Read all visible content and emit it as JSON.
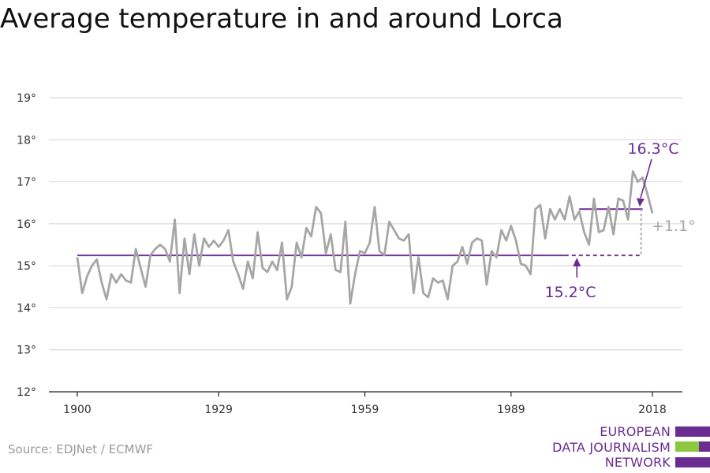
{
  "title": "Average temperature in and around Lorca",
  "source": "Source: EDJNet / ECMWF",
  "brand": {
    "lines": [
      "EUROPEAN",
      "DATA JOURNALISM",
      "NETWORK"
    ],
    "colors": {
      "purple": "#6a2c91",
      "green": "#8dc63f"
    }
  },
  "colors": {
    "series": "#a6a6a6",
    "reference": "#6a2c91",
    "delta": "#a6a6a6",
    "grid": "#dcdcdc",
    "axis": "#222222"
  },
  "chart_data": {
    "type": "line",
    "title": "Average temperature in and around Lorca",
    "xlabel": "",
    "ylabel": "",
    "xlim": [
      1900,
      2018
    ],
    "ylim": [
      12,
      19
    ],
    "yticks": [
      {
        "value": 12,
        "label": "12°"
      },
      {
        "value": 13,
        "label": "13°"
      },
      {
        "value": 14,
        "label": "14°"
      },
      {
        "value": 15,
        "label": "15°"
      },
      {
        "value": 16,
        "label": "16°"
      },
      {
        "value": 17,
        "label": "17°"
      },
      {
        "value": 18,
        "label": "18°"
      },
      {
        "value": 19,
        "label": "19°"
      }
    ],
    "xticks": [
      {
        "value": 1900,
        "label": "1900"
      },
      {
        "value": 1929,
        "label": "1929"
      },
      {
        "value": 1959,
        "label": "1959"
      },
      {
        "value": 1989,
        "label": "1989"
      },
      {
        "value": 2018,
        "label": "2018"
      }
    ],
    "grid": true,
    "series": [
      {
        "x": [
          1900,
          1901,
          1902,
          1903,
          1904,
          1905,
          1906,
          1907,
          1908,
          1909,
          1910,
          1911,
          1912,
          1913,
          1914,
          1915,
          1916,
          1917,
          1918,
          1919,
          1920,
          1921,
          1922,
          1923,
          1924,
          1925,
          1926,
          1927,
          1928,
          1929,
          1930,
          1931,
          1932,
          1933,
          1934,
          1935,
          1936,
          1937,
          1938,
          1939,
          1940,
          1941,
          1942,
          1943,
          1944,
          1945,
          1946,
          1947,
          1948,
          1949,
          1950,
          1951,
          1952,
          1953,
          1954,
          1955,
          1956,
          1957,
          1958,
          1959,
          1960,
          1961,
          1962,
          1963,
          1964,
          1965,
          1966,
          1967,
          1968,
          1969,
          1970,
          1971,
          1972,
          1973,
          1974,
          1975,
          1976,
          1977,
          1978,
          1979,
          1980,
          1981,
          1982,
          1983,
          1984,
          1985,
          1986,
          1987,
          1988,
          1989,
          1990,
          1991,
          1992,
          1993,
          1994,
          1995,
          1996,
          1997,
          1998,
          1999,
          2000,
          2001,
          2002,
          2003,
          2004,
          2005,
          2006,
          2007,
          2008,
          2009,
          2010,
          2011,
          2012,
          2013,
          2014,
          2015,
          2016,
          2017,
          2018
        ],
        "values": [
          15.2,
          14.35,
          14.75,
          15.0,
          15.15,
          14.6,
          14.2,
          14.8,
          14.6,
          14.8,
          14.65,
          14.6,
          15.4,
          14.95,
          14.5,
          15.25,
          15.4,
          15.5,
          15.4,
          15.1,
          16.1,
          14.35,
          15.65,
          14.8,
          15.75,
          15.0,
          15.65,
          15.45,
          15.6,
          15.45,
          15.6,
          15.85,
          15.1,
          14.8,
          14.45,
          15.1,
          14.7,
          15.8,
          14.95,
          14.85,
          15.1,
          14.9,
          15.55,
          14.2,
          14.5,
          15.55,
          15.2,
          15.9,
          15.7,
          16.4,
          16.25,
          15.3,
          15.75,
          14.9,
          14.85,
          16.05,
          14.1,
          14.8,
          15.35,
          15.3,
          15.55,
          16.4,
          15.35,
          15.25,
          16.05,
          15.85,
          15.65,
          15.6,
          15.75,
          14.35,
          15.2,
          14.35,
          14.25,
          14.7,
          14.6,
          14.65,
          14.2,
          15.0,
          15.1,
          15.45,
          15.05,
          15.55,
          15.65,
          15.6,
          14.55,
          15.35,
          15.2,
          15.85,
          15.6,
          15.95,
          15.6,
          15.05,
          15.0,
          14.8,
          16.35,
          16.45,
          15.65,
          16.35,
          16.1,
          16.35,
          16.1,
          16.65,
          16.1,
          16.3,
          15.8,
          15.5,
          16.6,
          15.8,
          15.85,
          16.4,
          15.75,
          16.6,
          16.55,
          16.1,
          17.25,
          17.0,
          17.1,
          16.7,
          16.25
        ]
      }
    ],
    "reference_lines": [
      {
        "y": 15.25,
        "from": 1900,
        "to": 2000,
        "style": "solid"
      },
      {
        "y": 15.25,
        "from": 2000,
        "to": 2016,
        "style": "dashed"
      },
      {
        "y": 16.35,
        "from": 2003,
        "to": 2016,
        "style": "solid"
      }
    ],
    "annotations": {
      "baseline_label": "15.2°C",
      "recent_label": "16.3°C",
      "delta_label": "+1.1°",
      "baseline_value": 15.25,
      "recent_value": 16.35,
      "delta_at": 2016
    }
  }
}
